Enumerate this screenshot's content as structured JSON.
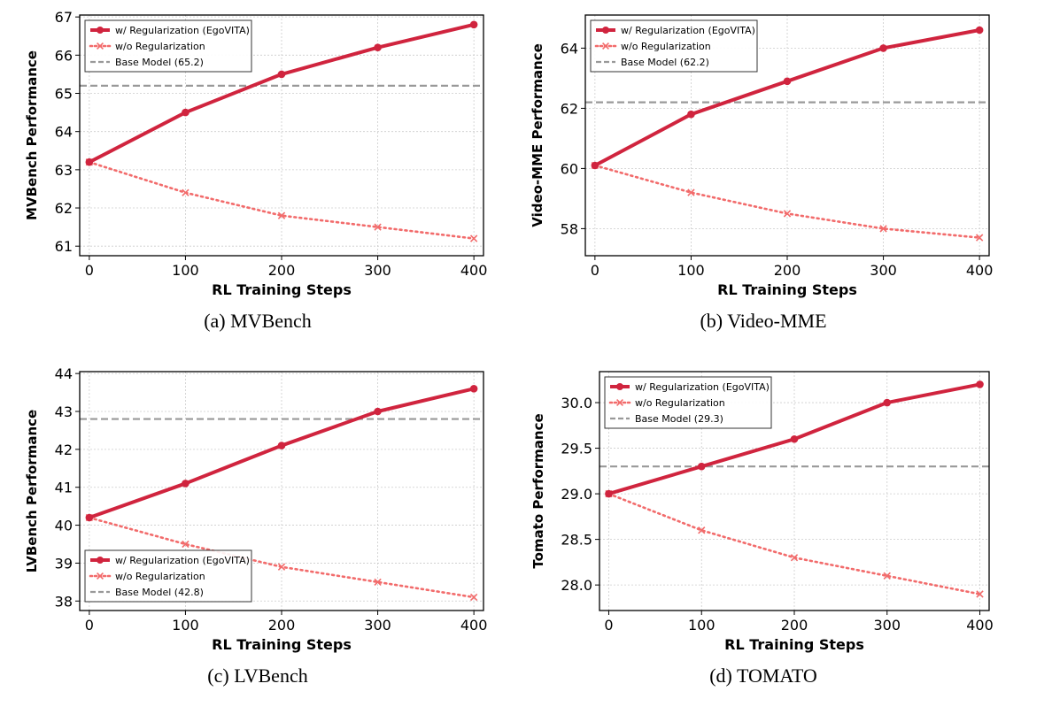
{
  "chart_data": [
    {
      "type": "line",
      "caption": "(a) MVBench",
      "ylabel": "MVBench Performance",
      "xlabel": "RL Training Steps",
      "x": [
        0,
        100,
        200,
        300,
        400
      ],
      "xticks": [
        "0",
        "100",
        "200",
        "300",
        "400"
      ],
      "xlim": [
        -10,
        410
      ],
      "ylim": [
        60.75,
        67.05
      ],
      "yticks": [
        "61",
        "62",
        "63",
        "64",
        "65",
        "66",
        "67"
      ],
      "series": [
        {
          "name": "w/ Regularization (EgoVITA)",
          "values": [
            63.2,
            64.5,
            65.5,
            66.2,
            66.8
          ]
        },
        {
          "name": "w/o Regularization",
          "values": [
            63.2,
            62.4,
            61.8,
            61.5,
            61.2
          ]
        }
      ],
      "baseline": {
        "name": "Base Model (65.2)",
        "value": 65.2
      },
      "legend_position": "top-left"
    },
    {
      "type": "line",
      "caption": "(b) Video-MME",
      "ylabel": "Video-MME Performance",
      "xlabel": "RL Training Steps",
      "x": [
        0,
        100,
        200,
        300,
        400
      ],
      "xticks": [
        "0",
        "100",
        "200",
        "300",
        "400"
      ],
      "xlim": [
        -10,
        410
      ],
      "ylim": [
        57.1,
        65.1
      ],
      "yticks": [
        "58",
        "60",
        "62",
        "64"
      ],
      "series": [
        {
          "name": "w/ Regularization (EgoVITA)",
          "values": [
            60.1,
            61.8,
            62.9,
            64.0,
            64.6
          ]
        },
        {
          "name": "w/o Regularization",
          "values": [
            60.1,
            59.2,
            58.5,
            58.0,
            57.7
          ]
        }
      ],
      "baseline": {
        "name": "Base Model (62.2)",
        "value": 62.2
      },
      "legend_position": "top-left"
    },
    {
      "type": "line",
      "caption": "(c) LVBench",
      "ylabel": "LVBench Performance",
      "xlabel": "RL Training Steps",
      "x": [
        0,
        100,
        200,
        300,
        400
      ],
      "xticks": [
        "0",
        "100",
        "200",
        "300",
        "400"
      ],
      "xlim": [
        -10,
        410
      ],
      "ylim": [
        37.75,
        44.05
      ],
      "yticks": [
        "38",
        "39",
        "40",
        "41",
        "42",
        "43",
        "44"
      ],
      "series": [
        {
          "name": "w/ Regularization (EgoVITA)",
          "values": [
            40.2,
            41.1,
            42.1,
            43.0,
            43.6
          ]
        },
        {
          "name": "w/o Regularization",
          "values": [
            40.2,
            39.5,
            38.9,
            38.5,
            38.1
          ]
        }
      ],
      "baseline": {
        "name": "Base Model (42.8)",
        "value": 42.8
      },
      "legend_position": "bottom-left"
    },
    {
      "type": "line",
      "caption": "(d) TOMATO",
      "ylabel": "Tomato Performance",
      "xlabel": "RL Training Steps",
      "x": [
        0,
        100,
        200,
        300,
        400
      ],
      "xticks": [
        "0",
        "100",
        "200",
        "300",
        "400"
      ],
      "xlim": [
        -10,
        410
      ],
      "ylim": [
        27.72,
        30.34
      ],
      "yticks": [
        "28.0",
        "28.5",
        "29.0",
        "29.5",
        "30.0"
      ],
      "series": [
        {
          "name": "w/ Regularization (EgoVITA)",
          "values": [
            29.0,
            29.3,
            29.6,
            30.0,
            30.2
          ]
        },
        {
          "name": "w/o Regularization",
          "values": [
            29.0,
            28.6,
            28.3,
            28.1,
            27.9
          ]
        }
      ],
      "baseline": {
        "name": "Base Model (29.3)",
        "value": 29.3
      },
      "legend_position": "top-left"
    }
  ],
  "colors": {
    "with_reg": "#d0243e",
    "without_reg": "#f26b6b",
    "baseline": "#999999",
    "grid": "#cccccc"
  }
}
